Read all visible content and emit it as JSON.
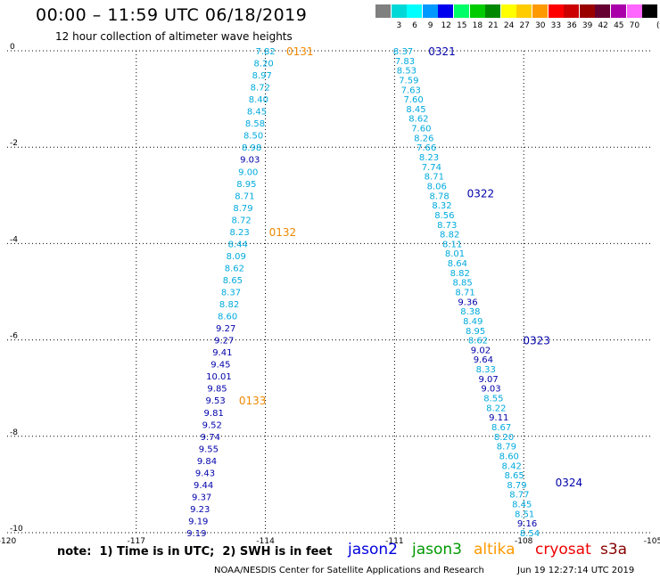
{
  "header": {
    "title": "00:00 – 11:59 UTC 06/18/2019",
    "subtitle": "12 hour collection of altimeter wave heights"
  },
  "legend": {
    "unit": "(ft)",
    "scale": [
      {
        "label": "",
        "color": "#808080"
      },
      {
        "label": "3",
        "color": "#00d8d8"
      },
      {
        "label": "6",
        "color": "#00ffff"
      },
      {
        "label": "9",
        "color": "#0099ff"
      },
      {
        "label": "12",
        "color": "#0000ee"
      },
      {
        "label": "15",
        "color": "#00ff66"
      },
      {
        "label": "18",
        "color": "#00cc00"
      },
      {
        "label": "21",
        "color": "#008800"
      },
      {
        "label": "24",
        "color": "#ffff00"
      },
      {
        "label": "27",
        "color": "#ffcc00"
      },
      {
        "label": "30",
        "color": "#ff9900"
      },
      {
        "label": "33",
        "color": "#ff0000"
      },
      {
        "label": "36",
        "color": "#cc0000"
      },
      {
        "label": "39",
        "color": "#990000"
      },
      {
        "label": "42",
        "color": "#660033"
      },
      {
        "label": "45",
        "color": "#aa00aa"
      },
      {
        "label": "70",
        "color": "#ff66ff"
      },
      {
        "label": "",
        "color": "#000000"
      }
    ]
  },
  "colors": {
    "light": "#00aadd",
    "dark": "#0000aa",
    "timelabel": "#ee8800"
  },
  "chart_data": {
    "type": "scatter",
    "xlim": [
      -120,
      -105
    ],
    "ylim": [
      -10,
      0
    ],
    "xticks": [
      "-120",
      "-117",
      "-114",
      "-111",
      "-108",
      "-105"
    ],
    "yticks": [
      "0",
      "-2",
      "-4",
      "-6",
      "-8",
      "-10"
    ],
    "grid": true,
    "tracks": [
      {
        "name": "altika",
        "points": [
          {
            "x": -114.0,
            "y": 0.0,
            "v": "7.82",
            "c": "light"
          },
          {
            "x": -114.04,
            "y": -0.25,
            "v": "8.20",
            "c": "light"
          },
          {
            "x": -114.08,
            "y": -0.5,
            "v": "8.97",
            "c": "light"
          },
          {
            "x": -114.12,
            "y": -0.75,
            "v": "8.72",
            "c": "light"
          },
          {
            "x": -114.16,
            "y": -1.0,
            "v": "8.40",
            "c": "light"
          },
          {
            "x": -114.2,
            "y": -1.25,
            "v": "8.45",
            "c": "light"
          },
          {
            "x": -114.24,
            "y": -1.5,
            "v": "8.58",
            "c": "light"
          },
          {
            "x": -114.28,
            "y": -1.75,
            "v": "8.50",
            "c": "light"
          },
          {
            "x": -114.32,
            "y": -2.0,
            "v": "8.98",
            "c": "light"
          },
          {
            "x": -114.36,
            "y": -2.25,
            "v": "9.03",
            "c": "dark"
          },
          {
            "x": -114.4,
            "y": -2.5,
            "v": "9.00",
            "c": "light"
          },
          {
            "x": -114.44,
            "y": -2.75,
            "v": "8.95",
            "c": "light"
          },
          {
            "x": -114.48,
            "y": -3.0,
            "v": "8.71",
            "c": "light"
          },
          {
            "x": -114.52,
            "y": -3.25,
            "v": "8.79",
            "c": "light"
          },
          {
            "x": -114.56,
            "y": -3.5,
            "v": "8.72",
            "c": "light"
          },
          {
            "x": -114.6,
            "y": -3.75,
            "v": "8.23",
            "c": "light"
          },
          {
            "x": -114.64,
            "y": -4.0,
            "v": "8.44",
            "c": "light"
          },
          {
            "x": -114.68,
            "y": -4.25,
            "v": "8.09",
            "c": "light"
          },
          {
            "x": -114.72,
            "y": -4.5,
            "v": "8.62",
            "c": "light"
          },
          {
            "x": -114.76,
            "y": -4.75,
            "v": "8.65",
            "c": "light"
          },
          {
            "x": -114.8,
            "y": -5.0,
            "v": "8.37",
            "c": "light"
          },
          {
            "x": -114.84,
            "y": -5.25,
            "v": "8.82",
            "c": "light"
          },
          {
            "x": -114.88,
            "y": -5.5,
            "v": "8.60",
            "c": "light"
          },
          {
            "x": -114.92,
            "y": -5.75,
            "v": "9.27",
            "c": "dark"
          },
          {
            "x": -114.96,
            "y": -6.0,
            "v": "9.27",
            "c": "dark"
          },
          {
            "x": -115.0,
            "y": -6.25,
            "v": "9.41",
            "c": "dark"
          },
          {
            "x": -115.04,
            "y": -6.5,
            "v": "9.45",
            "c": "dark"
          },
          {
            "x": -115.08,
            "y": -6.75,
            "v": "10.01",
            "c": "dark"
          },
          {
            "x": -115.12,
            "y": -7.0,
            "v": "9.85",
            "c": "dark"
          },
          {
            "x": -115.16,
            "y": -7.25,
            "v": "9.53",
            "c": "dark"
          },
          {
            "x": -115.2,
            "y": -7.5,
            "v": "9.81",
            "c": "dark"
          },
          {
            "x": -115.24,
            "y": -7.75,
            "v": "9.52",
            "c": "dark"
          },
          {
            "x": -115.28,
            "y": -8.0,
            "v": "9.74",
            "c": "dark"
          },
          {
            "x": -115.32,
            "y": -8.25,
            "v": "9.55",
            "c": "dark"
          },
          {
            "x": -115.36,
            "y": -8.5,
            "v": "9.84",
            "c": "dark"
          },
          {
            "x": -115.4,
            "y": -8.75,
            "v": "9.43",
            "c": "dark"
          },
          {
            "x": -115.44,
            "y": -9.0,
            "v": "9.44",
            "c": "dark"
          },
          {
            "x": -115.48,
            "y": -9.25,
            "v": "9.37",
            "c": "dark"
          },
          {
            "x": -115.52,
            "y": -9.5,
            "v": "9.23",
            "c": "dark"
          },
          {
            "x": -115.56,
            "y": -9.75,
            "v": "9.19",
            "c": "dark"
          },
          {
            "x": -115.6,
            "y": -10.0,
            "v": "9.19",
            "c": "dark"
          }
        ],
        "time_labels": [
          {
            "x": -113.2,
            "y": 0.0,
            "t": "0131"
          },
          {
            "x": -113.6,
            "y": -3.75,
            "t": "0132"
          },
          {
            "x": -114.3,
            "y": -7.25,
            "t": "0133"
          }
        ]
      },
      {
        "name": "jason2",
        "points": [
          {
            "x": -110.8,
            "y": 0.0,
            "v": "8.37",
            "c": "light"
          },
          {
            "x": -110.76,
            "y": -0.2,
            "v": "7.83",
            "c": "light"
          },
          {
            "x": -110.72,
            "y": -0.4,
            "v": "8.53",
            "c": "light"
          },
          {
            "x": -110.67,
            "y": -0.6,
            "v": "7.59",
            "c": "light"
          },
          {
            "x": -110.62,
            "y": -0.8,
            "v": "7.63",
            "c": "light"
          },
          {
            "x": -110.56,
            "y": -1.0,
            "v": "7.60",
            "c": "light"
          },
          {
            "x": -110.5,
            "y": -1.2,
            "v": "8.45",
            "c": "light"
          },
          {
            "x": -110.44,
            "y": -1.4,
            "v": "8.62",
            "c": "light"
          },
          {
            "x": -110.38,
            "y": -1.6,
            "v": "7.60",
            "c": "light"
          },
          {
            "x": -110.32,
            "y": -1.8,
            "v": "8.26",
            "c": "light"
          },
          {
            "x": -110.26,
            "y": -2.0,
            "v": "7.66",
            "c": "light"
          },
          {
            "x": -110.2,
            "y": -2.2,
            "v": "8.23",
            "c": "light"
          },
          {
            "x": -110.14,
            "y": -2.4,
            "v": "7.74",
            "c": "light"
          },
          {
            "x": -110.08,
            "y": -2.6,
            "v": "8.71",
            "c": "light"
          },
          {
            "x": -110.02,
            "y": -2.8,
            "v": "8.06",
            "c": "light"
          },
          {
            "x": -109.96,
            "y": -3.0,
            "v": "8.78",
            "c": "light"
          },
          {
            "x": -109.9,
            "y": -3.2,
            "v": "8.32",
            "c": "light"
          },
          {
            "x": -109.84,
            "y": -3.4,
            "v": "8.56",
            "c": "light"
          },
          {
            "x": -109.78,
            "y": -3.6,
            "v": "8.73",
            "c": "light"
          },
          {
            "x": -109.72,
            "y": -3.8,
            "v": "8.82",
            "c": "light"
          },
          {
            "x": -109.66,
            "y": -4.0,
            "v": "8.11",
            "c": "light"
          },
          {
            "x": -109.6,
            "y": -4.2,
            "v": "8.01",
            "c": "light"
          },
          {
            "x": -109.54,
            "y": -4.4,
            "v": "8.64",
            "c": "light"
          },
          {
            "x": -109.48,
            "y": -4.6,
            "v": "8.82",
            "c": "light"
          },
          {
            "x": -109.42,
            "y": -4.8,
            "v": "8.85",
            "c": "light"
          },
          {
            "x": -109.36,
            "y": -5.0,
            "v": "8.71",
            "c": "light"
          },
          {
            "x": -109.3,
            "y": -5.2,
            "v": "9.36",
            "c": "dark"
          },
          {
            "x": -109.24,
            "y": -5.4,
            "v": "8.38",
            "c": "light"
          },
          {
            "x": -109.18,
            "y": -5.6,
            "v": "8.49",
            "c": "light"
          },
          {
            "x": -109.12,
            "y": -5.8,
            "v": "8.95",
            "c": "light"
          },
          {
            "x": -109.06,
            "y": -6.0,
            "v": "8.62",
            "c": "light"
          },
          {
            "x": -109.0,
            "y": -6.2,
            "v": "9.02",
            "c": "dark"
          },
          {
            "x": -108.94,
            "y": -6.4,
            "v": "9.64",
            "c": "dark"
          },
          {
            "x": -108.88,
            "y": -6.6,
            "v": "8.33",
            "c": "light"
          },
          {
            "x": -108.82,
            "y": -6.8,
            "v": "9.07",
            "c": "dark"
          },
          {
            "x": -108.76,
            "y": -7.0,
            "v": "9.03",
            "c": "dark"
          },
          {
            "x": -108.7,
            "y": -7.2,
            "v": "8.55",
            "c": "light"
          },
          {
            "x": -108.64,
            "y": -7.4,
            "v": "8.22",
            "c": "light"
          },
          {
            "x": -108.58,
            "y": -7.6,
            "v": "9.11",
            "c": "dark"
          },
          {
            "x": -108.52,
            "y": -7.8,
            "v": "8.67",
            "c": "light"
          },
          {
            "x": -108.46,
            "y": -8.0,
            "v": "8.20",
            "c": "light"
          },
          {
            "x": -108.4,
            "y": -8.2,
            "v": "8.79",
            "c": "light"
          },
          {
            "x": -108.34,
            "y": -8.4,
            "v": "8.60",
            "c": "light"
          },
          {
            "x": -108.28,
            "y": -8.6,
            "v": "8.42",
            "c": "light"
          },
          {
            "x": -108.22,
            "y": -8.8,
            "v": "8.65",
            "c": "light"
          },
          {
            "x": -108.16,
            "y": -9.0,
            "v": "8.79",
            "c": "light"
          },
          {
            "x": -108.1,
            "y": -9.2,
            "v": "8.77",
            "c": "light"
          },
          {
            "x": -108.04,
            "y": -9.4,
            "v": "8.45",
            "c": "light"
          },
          {
            "x": -107.98,
            "y": -9.6,
            "v": "8.51",
            "c": "light"
          },
          {
            "x": -107.92,
            "y": -9.8,
            "v": "9.16",
            "c": "dark"
          },
          {
            "x": -107.86,
            "y": -10.0,
            "v": "8.54",
            "c": "light"
          }
        ],
        "time_labels": [
          {
            "x": -109.9,
            "y": 0.0,
            "t": "0321"
          },
          {
            "x": -109.0,
            "y": -2.95,
            "t": "0322"
          },
          {
            "x": -107.7,
            "y": -6.0,
            "t": "0323"
          },
          {
            "x": -106.95,
            "y": -8.95,
            "t": "0324"
          }
        ]
      }
    ]
  },
  "footer": {
    "note": "note:  1) Time is in UTC;  2) SWH is in feet",
    "satellites": [
      {
        "name": "jason2",
        "color": "#0000dd"
      },
      {
        "name": "jason3",
        "color": "#009900"
      },
      {
        "name": "altika",
        "color": "#ff9900"
      },
      {
        "name": "cryosat",
        "color": "#ee0000"
      },
      {
        "name": "s3a",
        "color": "#880000"
      }
    ],
    "credit": "NOAA/NESDIS Center for Satellite Applications and Research",
    "timestamp": "Jun 19 12:27:14 UTC 2019"
  }
}
